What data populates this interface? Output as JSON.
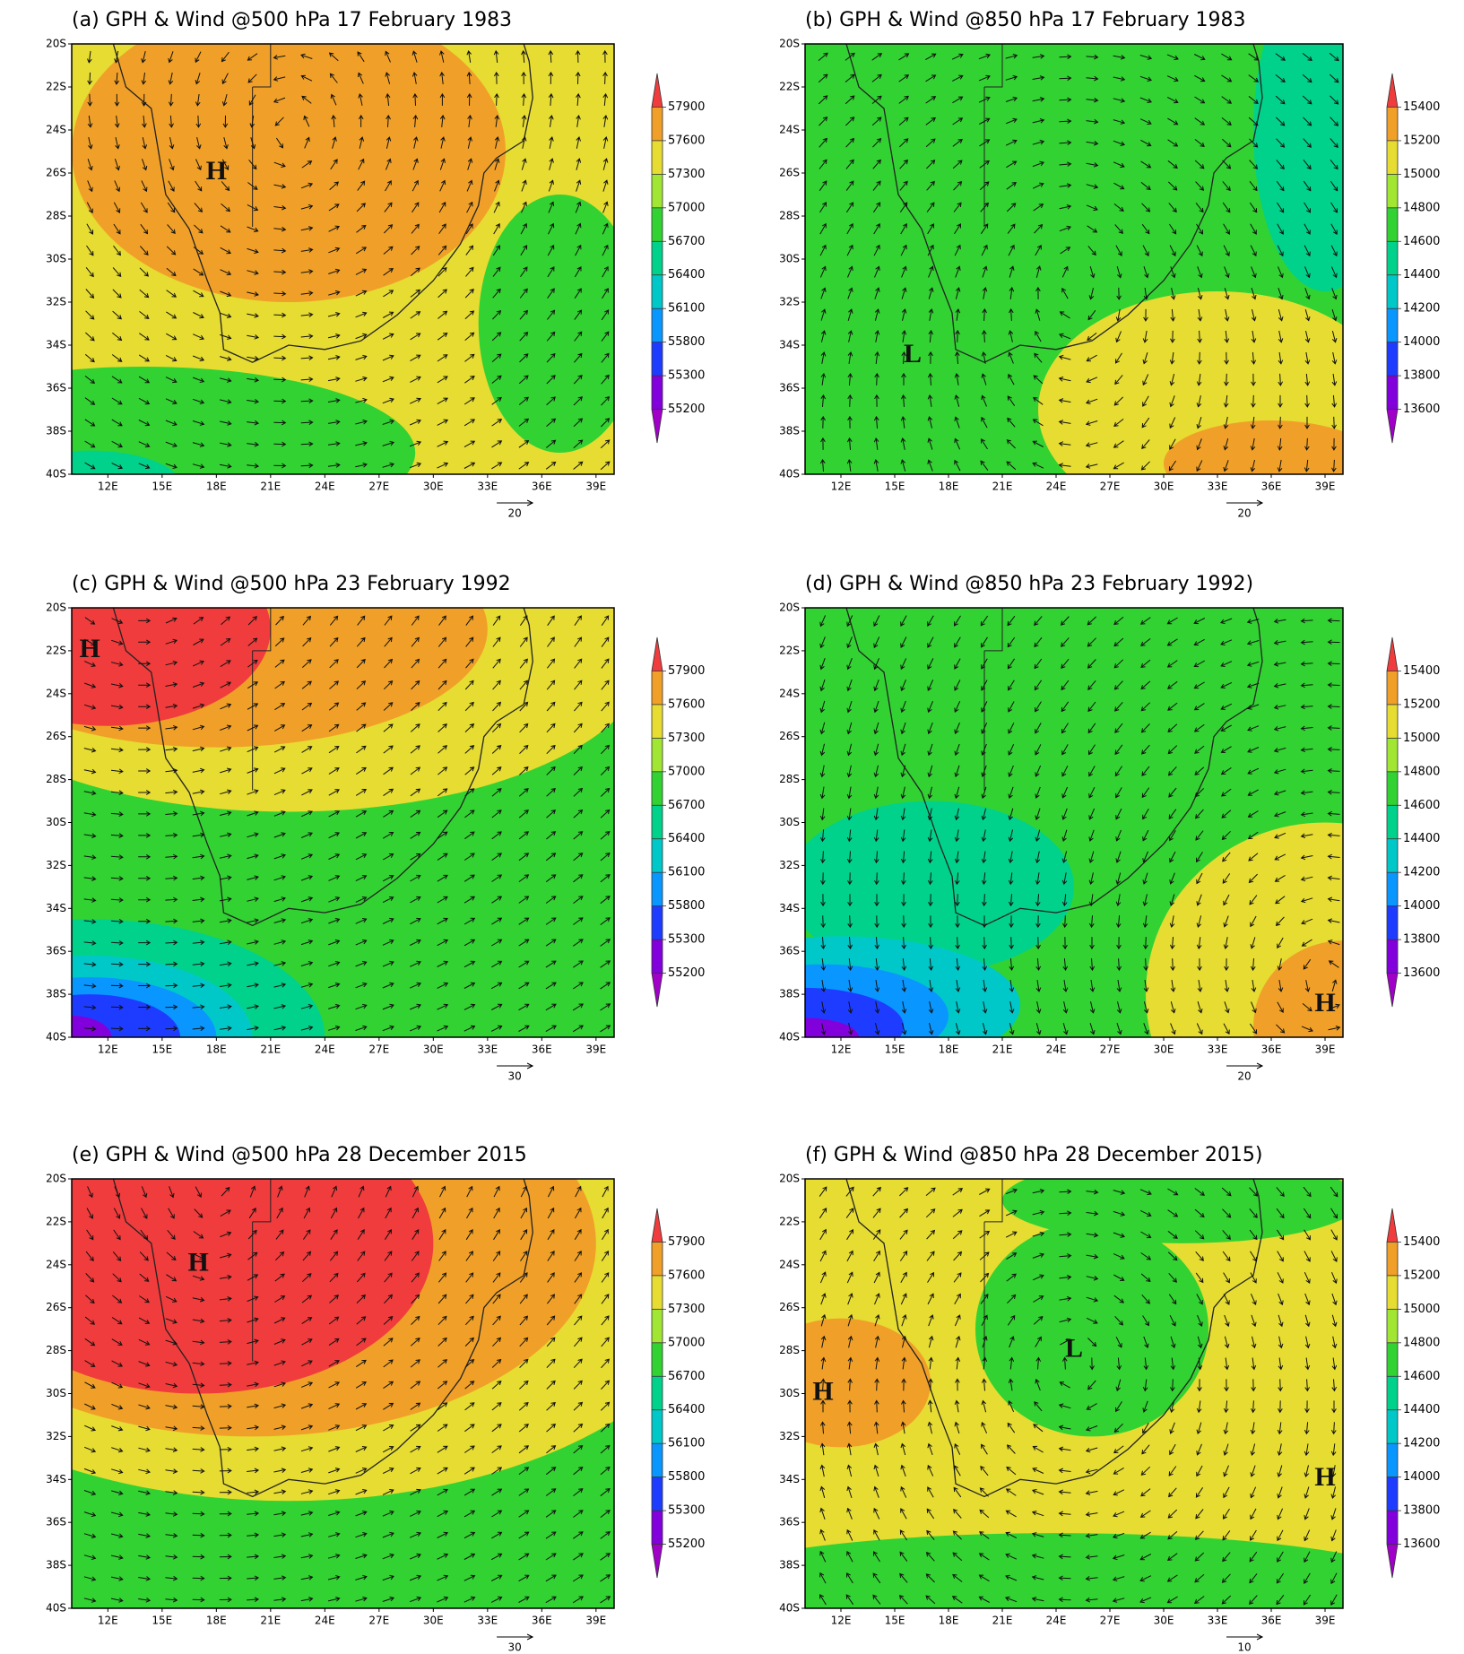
{
  "panels": [
    {
      "title": "(a) GPH & Wind @500 hPa 17 February 1983",
      "colorbar": [
        55200,
        55300,
        55800,
        56100,
        56400,
        56700,
        57000,
        57300,
        57600,
        57900
      ],
      "ref_vector": 20,
      "annotations": [
        "H"
      ]
    },
    {
      "title": "(b) GPH & Wind @850 hPa 17 February 1983",
      "colorbar": [
        13600,
        13800,
        14000,
        14200,
        14400,
        14600,
        14800,
        15000,
        15200,
        15400
      ],
      "ref_vector": 20,
      "annotations": [
        "L"
      ]
    },
    {
      "title": "(c) GPH & Wind @500 hPa 23 February 1992",
      "colorbar": [
        55200,
        55300,
        55800,
        56100,
        56400,
        56700,
        57000,
        57300,
        57600,
        57900
      ],
      "ref_vector": 30,
      "annotations": [
        "H"
      ]
    },
    {
      "title": "(d) GPH & Wind @850 hPa 23 February 1992)",
      "colorbar": [
        13600,
        13800,
        14000,
        14200,
        14400,
        14600,
        14800,
        15000,
        15200,
        15400
      ],
      "ref_vector": 20,
      "annotations": [
        "H"
      ]
    },
    {
      "title": "(e) GPH & Wind @500 hPa 28 December 2015",
      "colorbar": [
        55200,
        55300,
        55800,
        56100,
        56400,
        56700,
        57000,
        57300,
        57600,
        57900
      ],
      "ref_vector": 30,
      "annotations": [
        "H"
      ]
    },
    {
      "title": "(f) GPH & Wind @850 hPa 28 December 2015)",
      "colorbar": [
        13600,
        13800,
        14000,
        14200,
        14400,
        14600,
        14800,
        15000,
        15200,
        15400
      ],
      "ref_vector": 10,
      "annotations": [
        "H",
        "L",
        "H"
      ]
    }
  ],
  "lat_labels": [
    "20S",
    "22S",
    "24S",
    "26S",
    "28S",
    "30S",
    "32S",
    "34S",
    "36S",
    "38S",
    "40S"
  ],
  "lon_labels": [
    "12E",
    "15E",
    "18E",
    "21E",
    "24E",
    "27E",
    "30E",
    "33E",
    "36E",
    "39E"
  ],
  "colorbar_colors": [
    "#a000c8",
    "#8200dc",
    "#1e3cff",
    "#0a96ff",
    "#00c8c8",
    "#00d28c",
    "#32d232",
    "#a0e632",
    "#e6dc32",
    "#f0a028",
    "#f03c3c"
  ]
}
